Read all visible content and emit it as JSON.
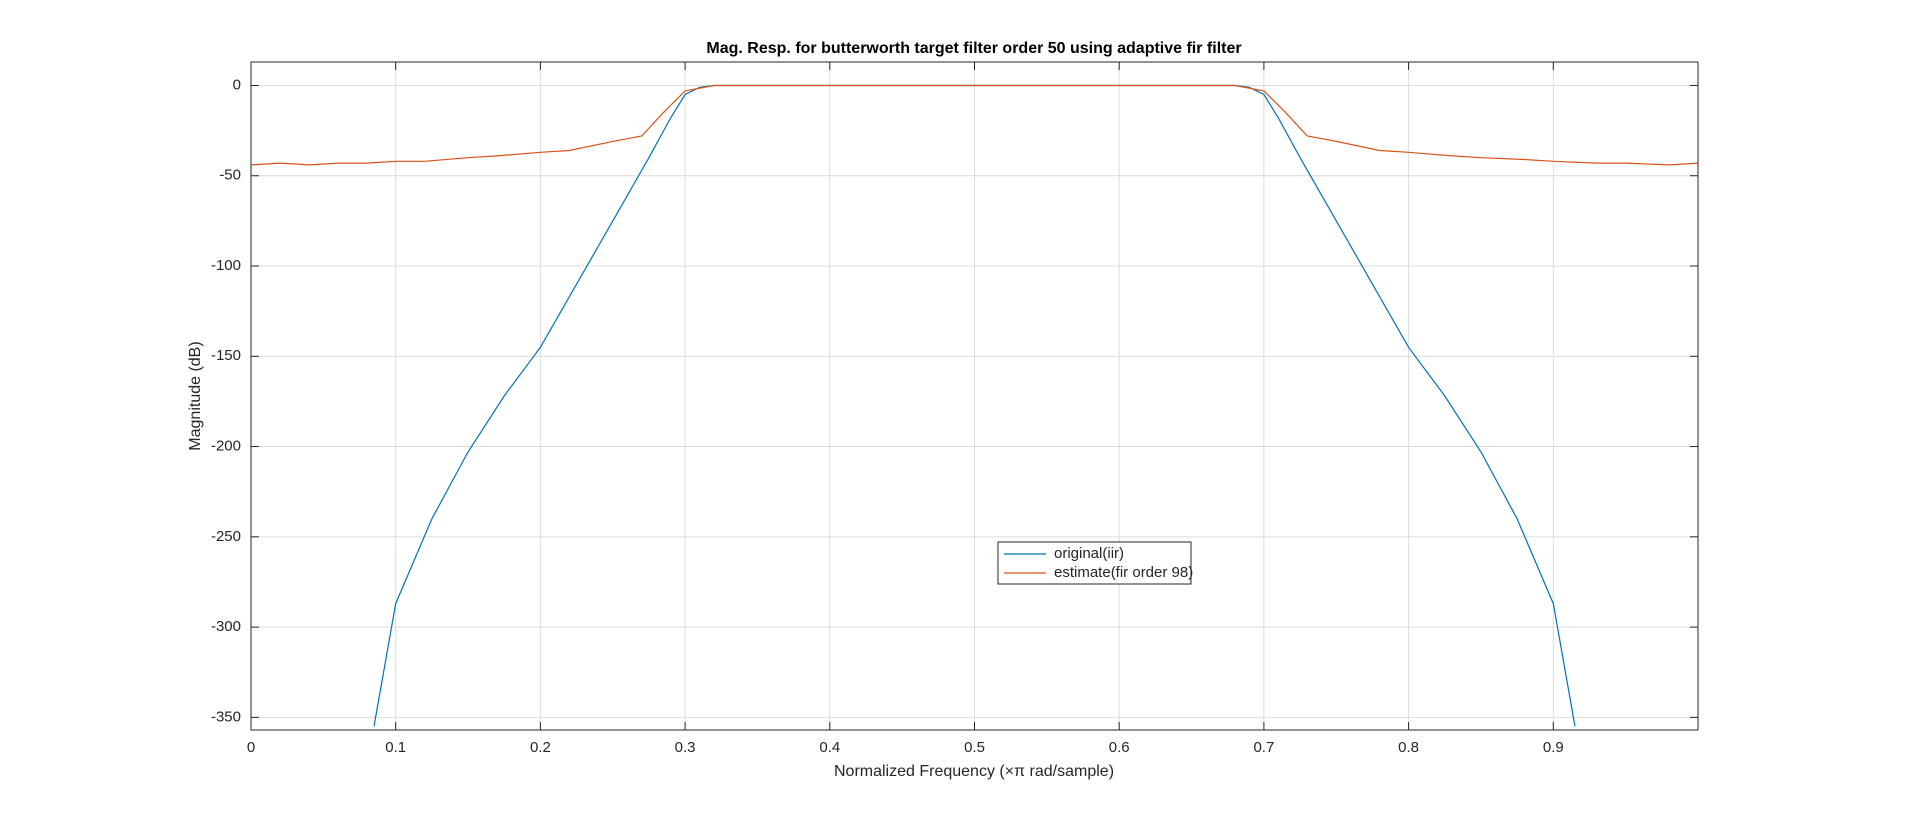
{
  "chart_data": {
    "type": "line",
    "title": "Mag. Resp. for butterworth target filter order 50 using adaptive fir filter",
    "x_label": "Normalized Frequency (×π rad/sample)",
    "y_label": "Magnitude (dB)",
    "xlim": [
      0,
      1
    ],
    "ylim": [
      -357,
      13
    ],
    "xticks": [
      0,
      0.1,
      0.2,
      0.3,
      0.4,
      0.5,
      0.6,
      0.7,
      0.8,
      0.9
    ],
    "yticks": [
      -350,
      -300,
      -250,
      -200,
      -150,
      -100,
      -50,
      0
    ],
    "grid": true,
    "series": [
      {
        "name": "original(iir)",
        "color": "#0072bd",
        "x": [
          0.085,
          0.1,
          0.125,
          0.15,
          0.175,
          0.2,
          0.225,
          0.25,
          0.275,
          0.29,
          0.3,
          0.31,
          0.32,
          0.5,
          0.68,
          0.69,
          0.7,
          0.71,
          0.725,
          0.75,
          0.775,
          0.8,
          0.825,
          0.85,
          0.875,
          0.9,
          0.915
        ],
        "values": [
          -355,
          -287,
          -240,
          -203,
          -172,
          -145,
          -110,
          -75,
          -40,
          -18,
          -5,
          -1,
          0,
          0,
          0,
          -1,
          -5,
          -18,
          -40,
          -75,
          -110,
          -145,
          -172,
          -203,
          -240,
          -287,
          -355
        ]
      },
      {
        "name": "estimate(fir order 98)",
        "color": "#d95319",
        "x": [
          0,
          0.02,
          0.04,
          0.06,
          0.08,
          0.1,
          0.12,
          0.15,
          0.17,
          0.2,
          0.22,
          0.25,
          0.27,
          0.285,
          0.3,
          0.32,
          0.4,
          0.5,
          0.6,
          0.68,
          0.7,
          0.715,
          0.73,
          0.75,
          0.78,
          0.8,
          0.83,
          0.85,
          0.88,
          0.9,
          0.93,
          0.95,
          0.98,
          1
        ],
        "values": [
          -44,
          -43,
          -44,
          -43,
          -43,
          -42,
          -42,
          -40,
          -39,
          -37,
          -36,
          -31,
          -28,
          -15,
          -3,
          0,
          0,
          0,
          0,
          0,
          -3,
          -15,
          -28,
          -31,
          -36,
          -37,
          -39,
          -40,
          -41,
          -42,
          -43,
          -43,
          -44,
          -43
        ]
      }
    ]
  }
}
